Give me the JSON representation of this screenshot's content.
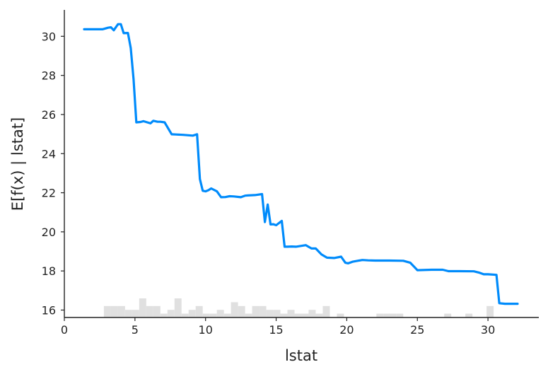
{
  "chart_data": {
    "type": "line",
    "title": "",
    "xlabel": "lstat",
    "ylabel": "E[f(x) | lstat]",
    "xlim": [
      0,
      33.6
    ],
    "ylim": [
      15.62,
      31.35
    ],
    "xticks": [
      "0",
      "5",
      "10",
      "15",
      "20",
      "25",
      "30"
    ],
    "yticks": [
      "16",
      "18",
      "20",
      "22",
      "24",
      "26",
      "28",
      "30"
    ],
    "grid": false,
    "legend": "none",
    "line_color": "#008bfb",
    "hist_color": "#e0e0e0",
    "series": [
      {
        "x": [
          1.4,
          2.5,
          2.7,
          3.1,
          3.3,
          3.5,
          3.8,
          4.0,
          4.2,
          4.5,
          4.7,
          4.9,
          5.1,
          5.4,
          5.6,
          6.1,
          6.3,
          6.6,
          6.8,
          7.1,
          7.6,
          7.9,
          8.4,
          9.1,
          9.4,
          9.6,
          9.8,
          10.0,
          10.2,
          10.4,
          10.8,
          11.1,
          11.4,
          11.7,
          12.0,
          12.5,
          12.8,
          13.0,
          13.5,
          14.0,
          14.2,
          14.4,
          14.6,
          14.8,
          15.0,
          15.4,
          15.6,
          15.8,
          16.1,
          16.4,
          17.1,
          17.5,
          17.8,
          18.0,
          18.2,
          18.6,
          19.1,
          19.6,
          19.9,
          20.1,
          20.4,
          20.6,
          21.1,
          21.5,
          22.0,
          23.0,
          24.0,
          24.5,
          25.0,
          26.0,
          26.5,
          26.8,
          27.2,
          28.0,
          29.0,
          29.4,
          29.7,
          30.0,
          30.6,
          30.8,
          31.2,
          32.1
        ],
        "y": [
          30.36,
          30.36,
          30.36,
          30.44,
          30.46,
          30.31,
          30.62,
          30.62,
          30.16,
          30.17,
          29.4,
          27.8,
          25.6,
          25.62,
          25.66,
          25.55,
          25.68,
          25.63,
          25.63,
          25.6,
          24.99,
          24.98,
          24.96,
          24.92,
          24.99,
          22.7,
          22.1,
          22.07,
          22.13,
          22.22,
          22.07,
          21.77,
          21.78,
          21.82,
          21.81,
          21.77,
          21.85,
          21.86,
          21.88,
          21.93,
          20.5,
          21.4,
          20.38,
          20.39,
          20.34,
          20.56,
          19.24,
          19.24,
          19.25,
          19.24,
          19.32,
          19.15,
          19.15,
          19.0,
          18.85,
          18.68,
          18.66,
          18.73,
          18.42,
          18.39,
          18.47,
          18.5,
          18.56,
          18.54,
          18.53,
          18.53,
          18.52,
          18.42,
          18.04,
          18.06,
          18.06,
          18.06,
          17.99,
          17.99,
          17.98,
          17.91,
          17.83,
          17.83,
          17.8,
          16.35,
          16.32,
          16.32
        ]
      }
    ],
    "histogram": {
      "bin_width": 0.5,
      "bins": [
        [
          2.8,
          3
        ],
        [
          3.3,
          3
        ],
        [
          3.8,
          3
        ],
        [
          4.3,
          2
        ],
        [
          4.8,
          2
        ],
        [
          5.3,
          5
        ],
        [
          5.8,
          3
        ],
        [
          6.3,
          3
        ],
        [
          6.8,
          1
        ],
        [
          7.3,
          2
        ],
        [
          7.8,
          5
        ],
        [
          8.3,
          1
        ],
        [
          8.8,
          2
        ],
        [
          9.3,
          3
        ],
        [
          9.8,
          1
        ],
        [
          10.3,
          1
        ],
        [
          10.8,
          2
        ],
        [
          11.3,
          1
        ],
        [
          11.8,
          4
        ],
        [
          12.3,
          3
        ],
        [
          12.8,
          1
        ],
        [
          13.3,
          3
        ],
        [
          13.8,
          3
        ],
        [
          14.3,
          2
        ],
        [
          14.8,
          2
        ],
        [
          15.3,
          1
        ],
        [
          15.8,
          2
        ],
        [
          16.3,
          1
        ],
        [
          16.8,
          1
        ],
        [
          17.3,
          2
        ],
        [
          17.8,
          1
        ],
        [
          18.3,
          3
        ],
        [
          18.8,
          0
        ],
        [
          19.3,
          1
        ],
        [
          22.1,
          1
        ],
        [
          22.6,
          1
        ],
        [
          23.0,
          1
        ],
        [
          23.5,
          1
        ],
        [
          26.9,
          1
        ],
        [
          28.4,
          1
        ],
        [
          29.9,
          3
        ]
      ]
    }
  }
}
